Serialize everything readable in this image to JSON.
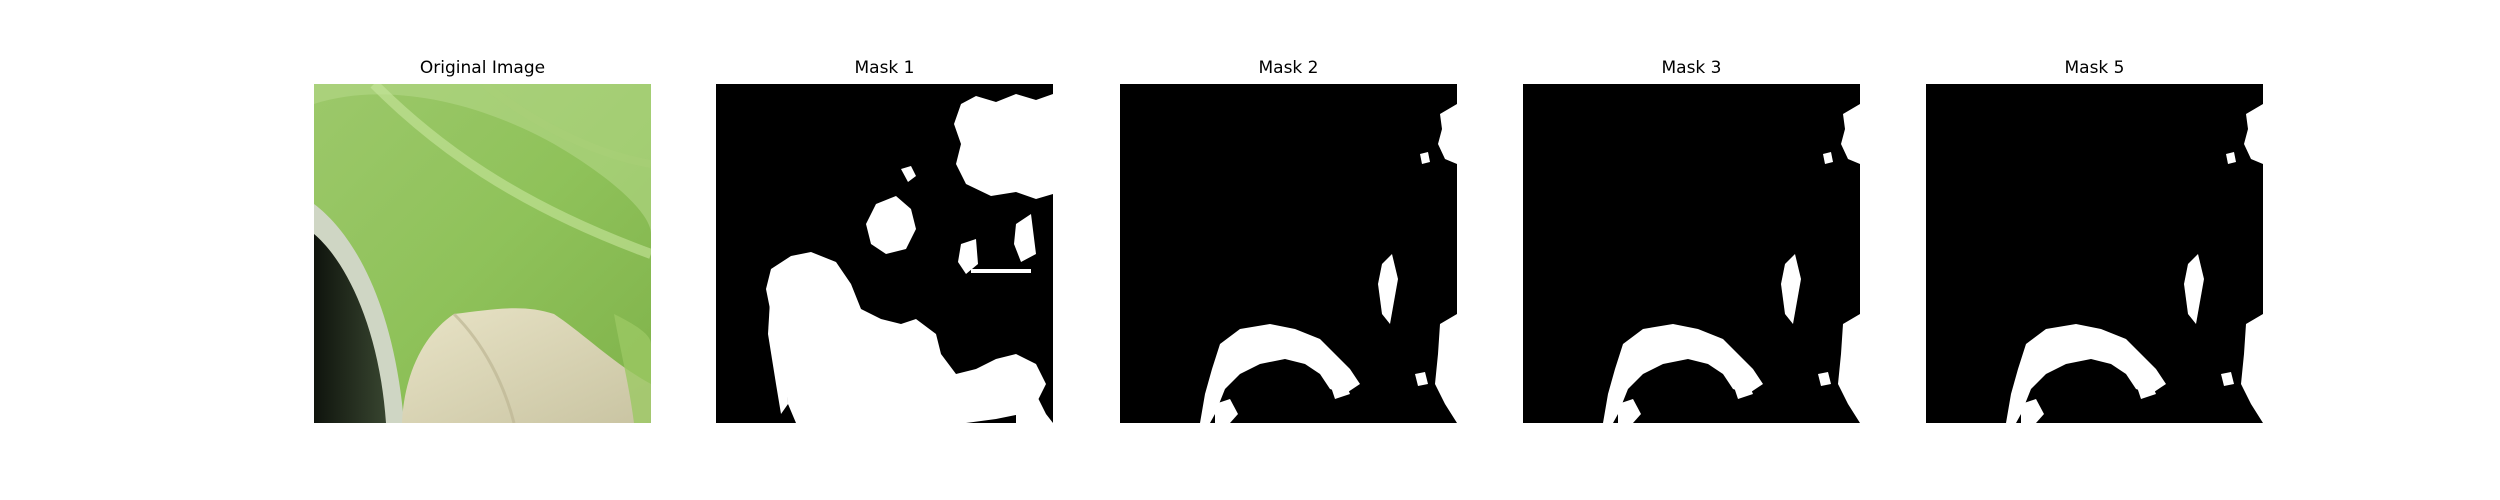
{
  "panels": [
    {
      "title": "Original Image"
    },
    {
      "title": "Mask 1"
    },
    {
      "title": "Mask 2"
    },
    {
      "title": "Mask 3"
    },
    {
      "title": "Mask 5"
    }
  ],
  "colors": {
    "background": "#ffffff",
    "mask_background": "#000000",
    "mask_foreground": "#ffffff",
    "leaf_green": "#8fc25a",
    "leaf_light": "#b8de86",
    "pot_dark": "#1c2418",
    "pot_rim": "#cfd6c4",
    "paper_tan": "#e0d9b8"
  }
}
